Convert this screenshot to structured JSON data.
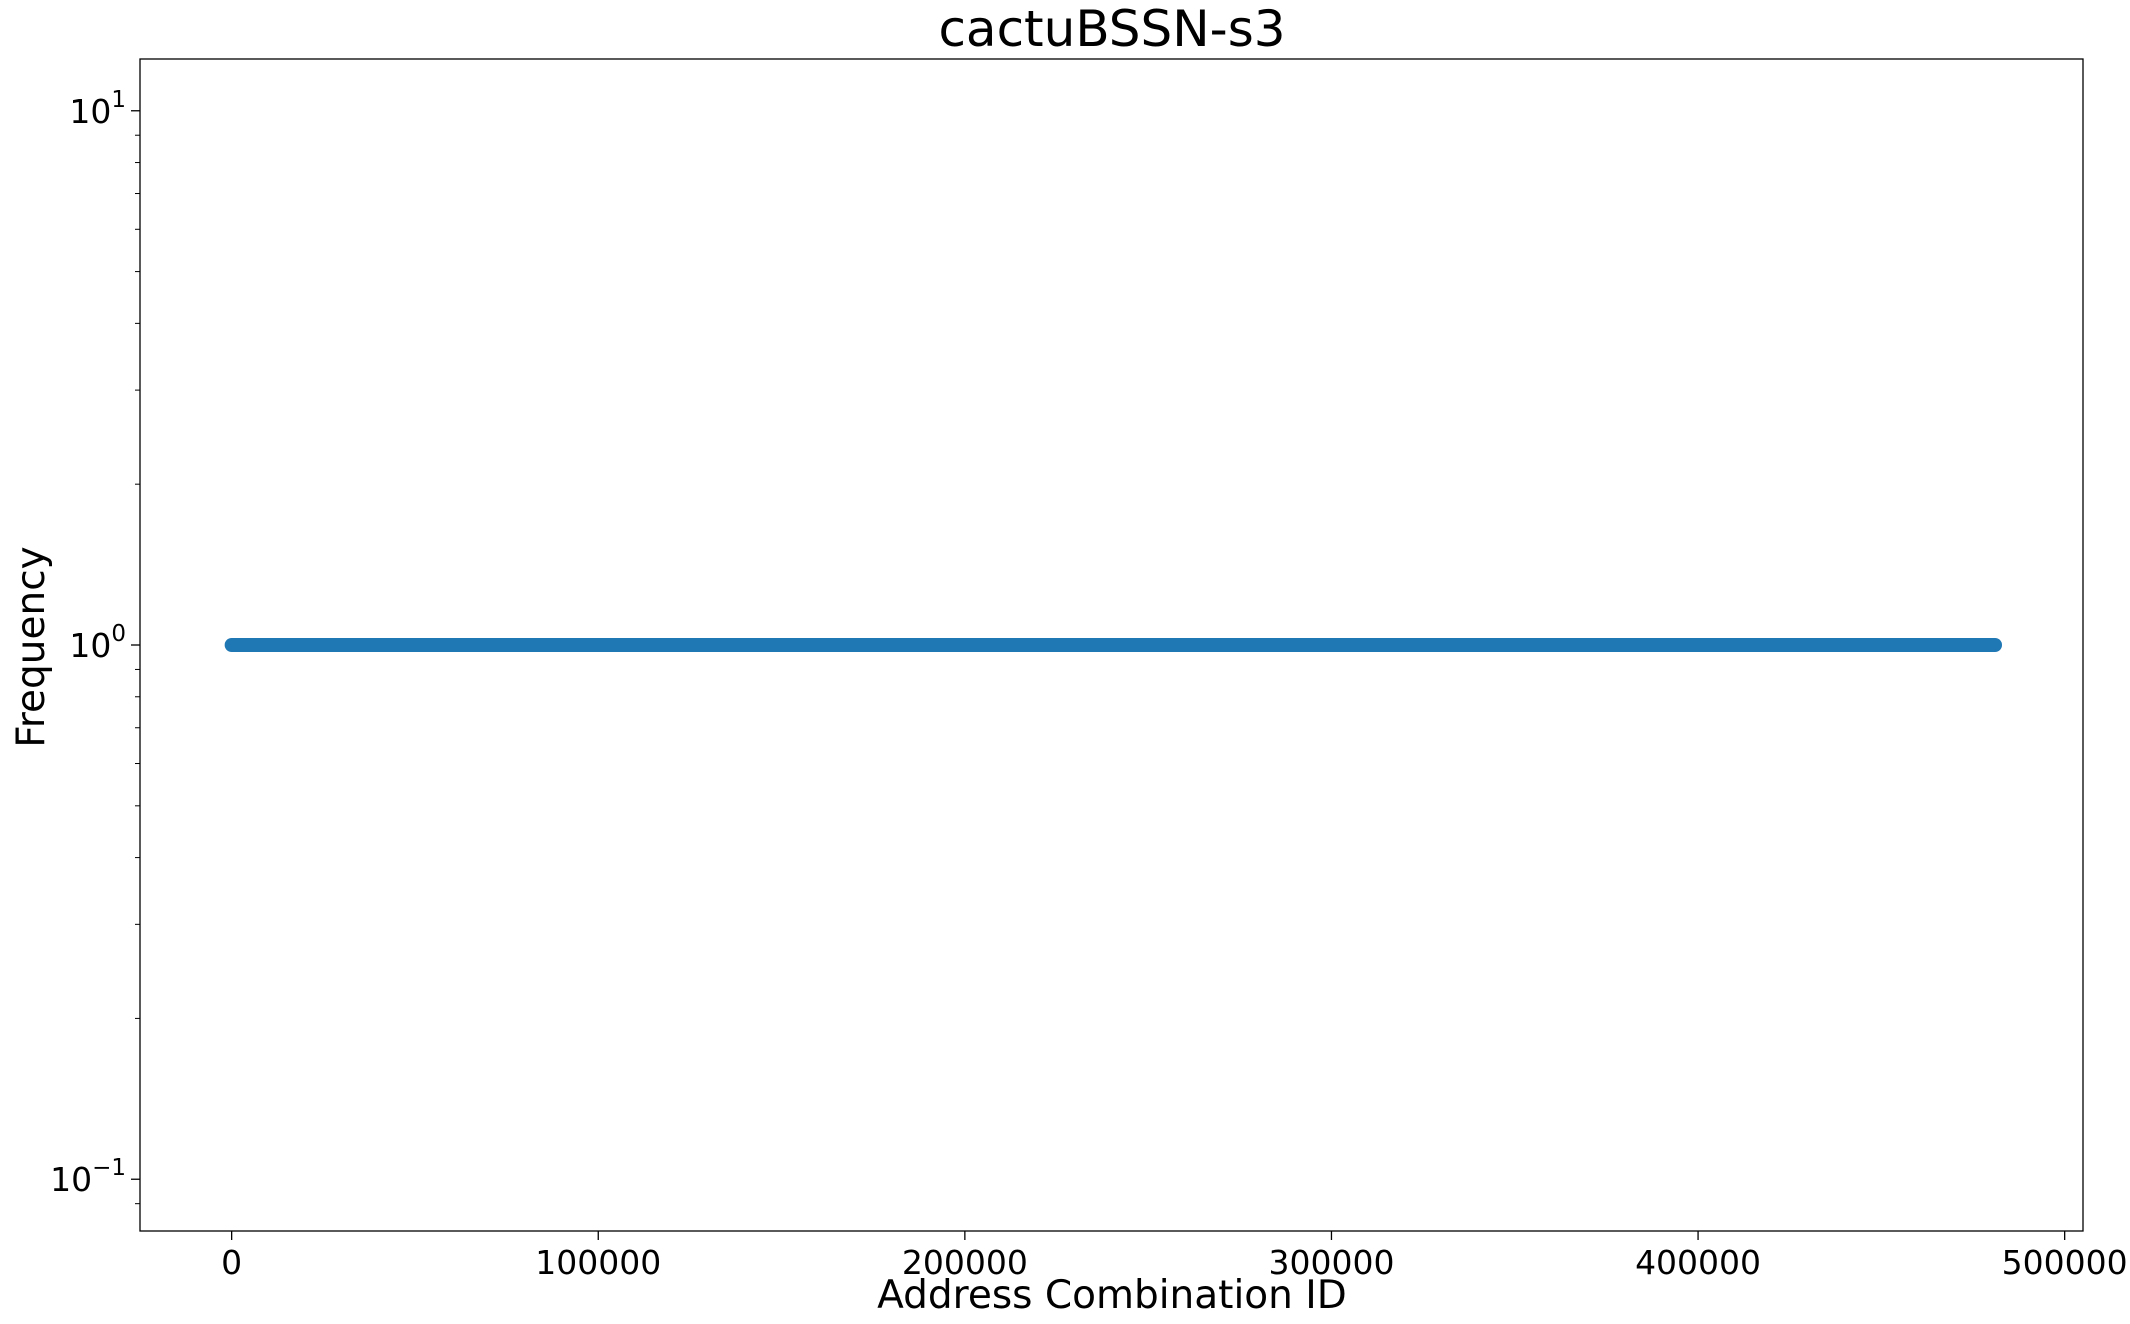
{
  "chart_data": {
    "type": "scatter",
    "title": "cactuBSSN-s3",
    "xlabel": "Address Combination ID",
    "ylabel": "Frequency",
    "xlim": [
      -25000,
      505000
    ],
    "ylim": [
      0.08,
      12.5
    ],
    "yscale": "log",
    "grid": false,
    "legend": "none",
    "color": "#1f77b4",
    "x_ticks": [
      0,
      100000,
      200000,
      300000,
      400000,
      500000
    ],
    "x_tick_labels": [
      "0",
      "100000",
      "200000",
      "300000",
      "400000",
      "500000"
    ],
    "y_ticks": [
      0.1,
      1,
      10
    ],
    "y_tick_labels": [
      {
        "base": "10",
        "exp": "−1"
      },
      {
        "base": "10",
        "exp": "0"
      },
      {
        "base": "10",
        "exp": "1"
      }
    ],
    "series": [
      {
        "x_start": 0,
        "x_end": 481000,
        "y": 1
      }
    ]
  }
}
